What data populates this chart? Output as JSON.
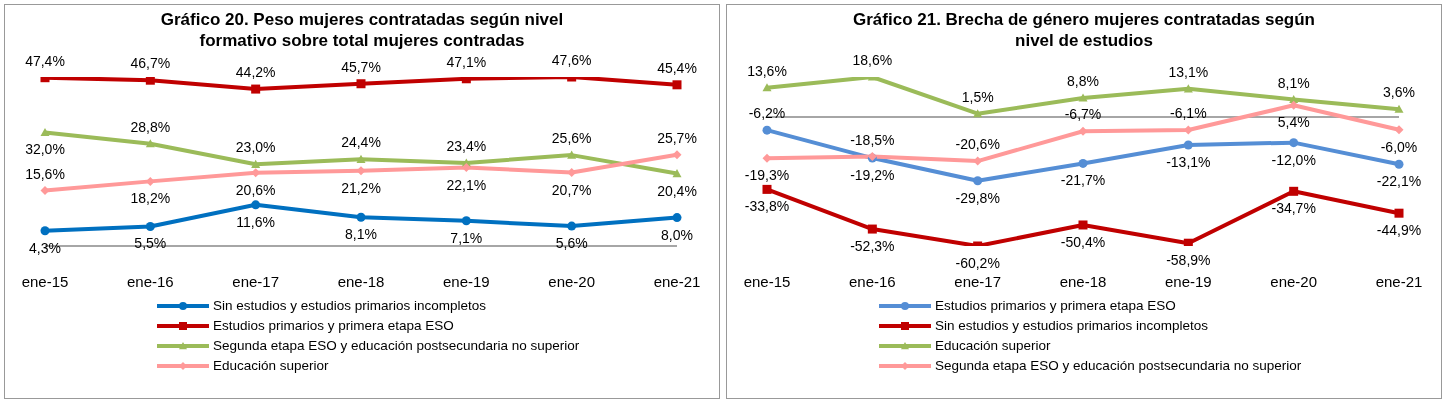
{
  "chart_data": [
    {
      "type": "line",
      "title": "Gráfico 20. Peso mujeres contratadas según nivel formativo sobre total mujeres contradas",
      "categories": [
        "ene-15",
        "ene-16",
        "ene-17",
        "ene-18",
        "ene-19",
        "ene-20",
        "ene-21"
      ],
      "legend": "bottom",
      "series": [
        {
          "name": "Sin estudios y estudios primarios incompletos",
          "color": "#0070c0",
          "marker": "circle",
          "values": [
            4.3,
            5.5,
            11.6,
            8.1,
            7.1,
            5.6,
            8.0
          ],
          "value_labels": [
            "4,3%",
            "5,5%",
            "11,6%",
            "8,1%",
            "7,1%",
            "5,6%",
            "8,0%"
          ]
        },
        {
          "name": "Estudios primarios y primera etapa ESO",
          "color": "#c00000",
          "marker": "square",
          "values": [
            47.4,
            46.7,
            44.2,
            45.7,
            47.1,
            47.6,
            45.4
          ],
          "value_labels": [
            "47,4%",
            "46,7%",
            "44,2%",
            "45,7%",
            "47,1%",
            "47,6%",
            "45,4%"
          ]
        },
        {
          "name": "Segunda etapa ESO y educación postsecundaria no superior",
          "color": "#9bbb59",
          "marker": "triangle",
          "values": [
            32.0,
            28.8,
            23.0,
            24.4,
            23.4,
            25.6,
            20.4
          ],
          "value_labels": [
            "32,0%",
            "28,8%",
            "23,0%",
            "24,4%",
            "23,4%",
            "25,6%",
            "20,4%"
          ]
        },
        {
          "name": "Educación superior",
          "color": "#ff9999",
          "marker": "diamond",
          "values": [
            15.6,
            18.2,
            20.6,
            21.2,
            22.1,
            20.7,
            25.7
          ],
          "value_labels": [
            "15,6%",
            "18,2%",
            "20,6%",
            "21,2%",
            "22,1%",
            "20,7%",
            "25,7%"
          ]
        }
      ]
    },
    {
      "type": "line",
      "title": "Gráfico 21. Brecha de género mujeres contratadas según nivel de estudios",
      "categories": [
        "ene-15",
        "ene-16",
        "ene-17",
        "ene-18",
        "ene-19",
        "ene-20",
        "ene-21"
      ],
      "legend": "bottom",
      "series": [
        {
          "name": "Estudios primarios y primera etapa ESO",
          "color": "#558ed5",
          "marker": "circle",
          "values": [
            -6.2,
            -19.2,
            -29.8,
            -21.7,
            -13.1,
            -12.0,
            -22.1
          ],
          "value_labels": [
            "-6,2%",
            "-19,2%",
            "-29,8%",
            "-21,7%",
            "-13,1%",
            "-12,0%",
            "-22,1%"
          ]
        },
        {
          "name": "Sin estudios y estudios primarios incompletos",
          "color": "#c00000",
          "marker": "square",
          "values": [
            -33.8,
            -52.3,
            -60.2,
            -50.4,
            -58.9,
            -34.7,
            -44.9
          ],
          "value_labels": [
            "-33,8%",
            "-52,3%",
            "-60,2%",
            "-50,4%",
            "-58,9%",
            "-34,7%",
            "-44,9%"
          ]
        },
        {
          "name": "Educación superior",
          "color": "#9bbb59",
          "marker": "triangle",
          "values": [
            13.6,
            18.6,
            1.5,
            8.8,
            13.1,
            8.1,
            3.6
          ],
          "value_labels": [
            "13,6%",
            "18,6%",
            "1,5%",
            "8,8%",
            "13,1%",
            "8,1%",
            "3,6%"
          ]
        },
        {
          "name": "Segunda etapa ESO y educación postsecundaria no superior",
          "color": "#ff9999",
          "marker": "diamond",
          "values": [
            -19.3,
            -18.5,
            -20.6,
            -6.7,
            -6.1,
            5.4,
            -6.0
          ],
          "value_labels": [
            "-19,3%",
            "-18,5%",
            "-20,6%",
            "-6,7%",
            "-6,1%",
            "5,4%",
            "-6,0%"
          ]
        }
      ]
    }
  ]
}
